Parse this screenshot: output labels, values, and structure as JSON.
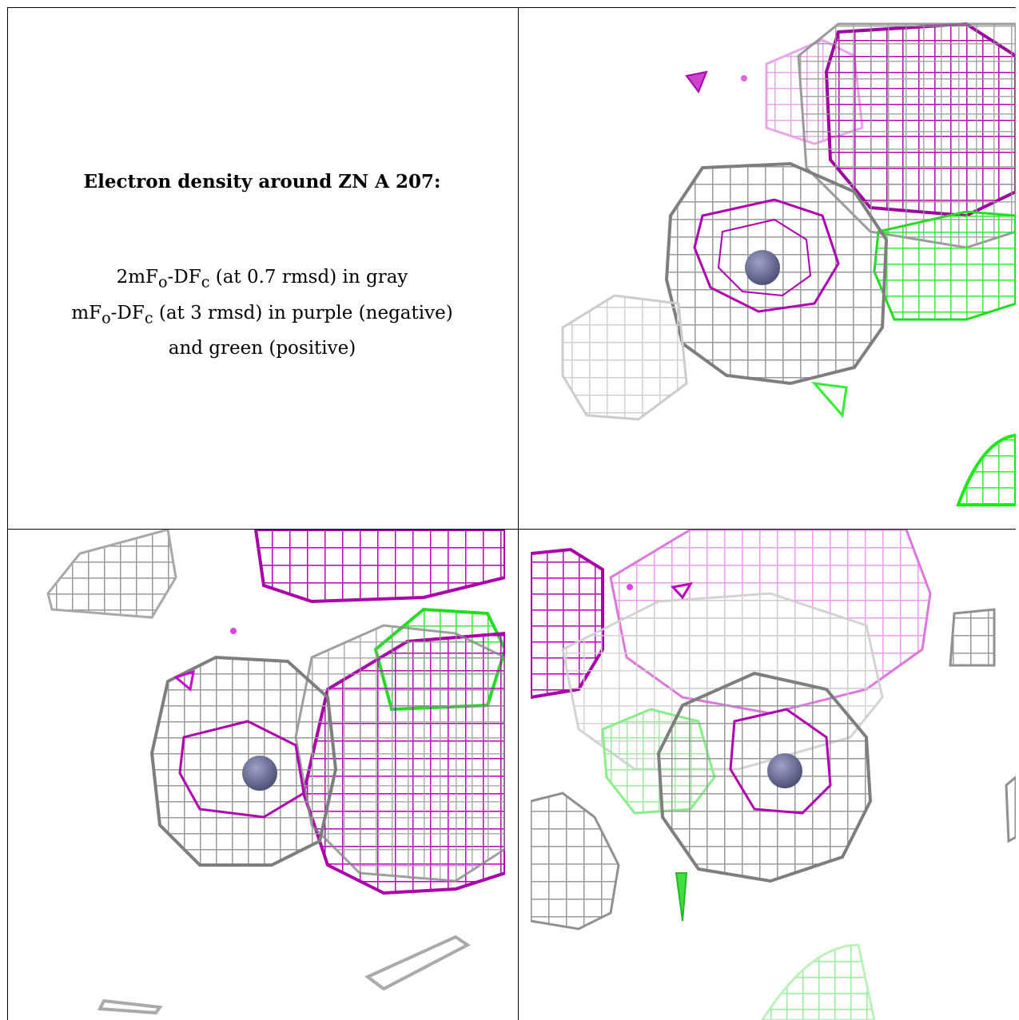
{
  "caption": {
    "title": "Electron density around ZN A 207:",
    "line1_pre": "2mF",
    "line1_sub1": "o",
    "line1_mid": "-DF",
    "line1_sub2": "c",
    "line1_post": " (at 0.7 rmsd) in gray",
    "line2_pre": "mF",
    "line2_sub1": "o",
    "line2_mid": "-DF",
    "line2_sub2": "c",
    "line2_post": " (at 3 rmsd) in purple (negative)",
    "line3": "and green (positive)"
  },
  "colors": {
    "gray_map": "#9a9a9a",
    "gray_map_light": "#d4d4d4",
    "negative_map": "#c000c0",
    "negative_map_light": "#e89ae8",
    "positive_map": "#22ee22",
    "positive_map_light": "#a8f5a8",
    "zinc_atom": "#6b6f96"
  },
  "panels": [
    {
      "name": "view-top-right",
      "atom": "zinc-atom"
    },
    {
      "name": "view-bottom-left",
      "atom": "zinc-atom"
    },
    {
      "name": "view-bottom-right",
      "atom": "zinc-atom"
    }
  ]
}
